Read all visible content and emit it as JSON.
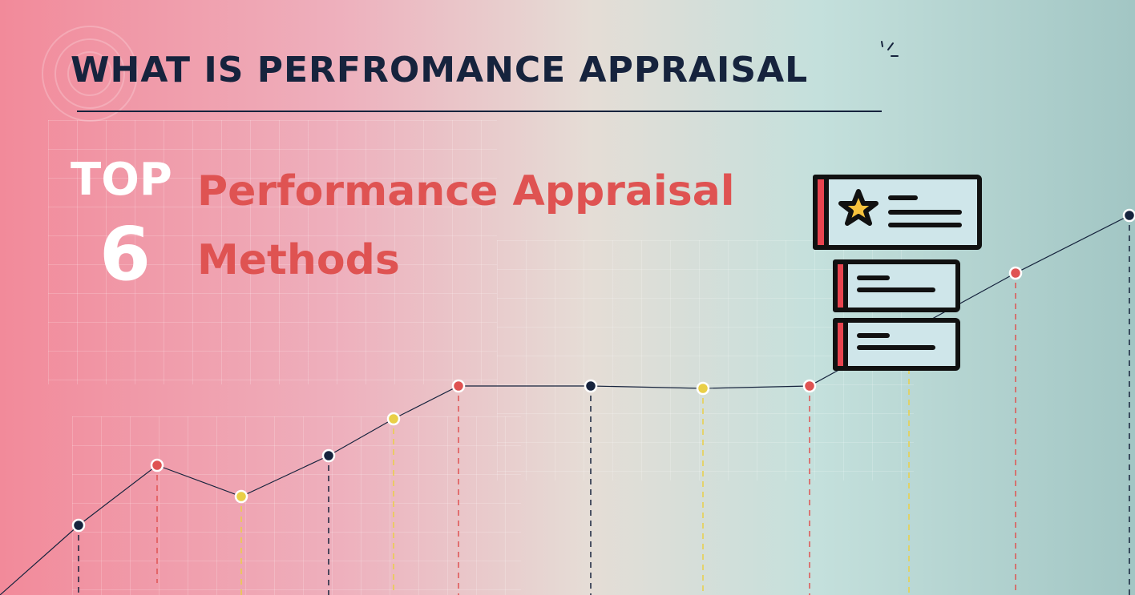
{
  "header": {
    "title": "WHAT IS PERFROMANCE APPRAISAL"
  },
  "hero": {
    "top_word": "TOP",
    "top_number": "6",
    "subtitle_line1": "Performance Appraisal",
    "subtitle_line2": "Methods"
  },
  "colors": {
    "navy": "#16233d",
    "coral": "#df5352",
    "yellow": "#e9cf47",
    "white": "#ffffff",
    "icon_panel": "#cfe6ea"
  },
  "icons": {
    "illustration": "appraisal-cards-star-icon",
    "accent": "sparkle-lines-icon"
  }
}
